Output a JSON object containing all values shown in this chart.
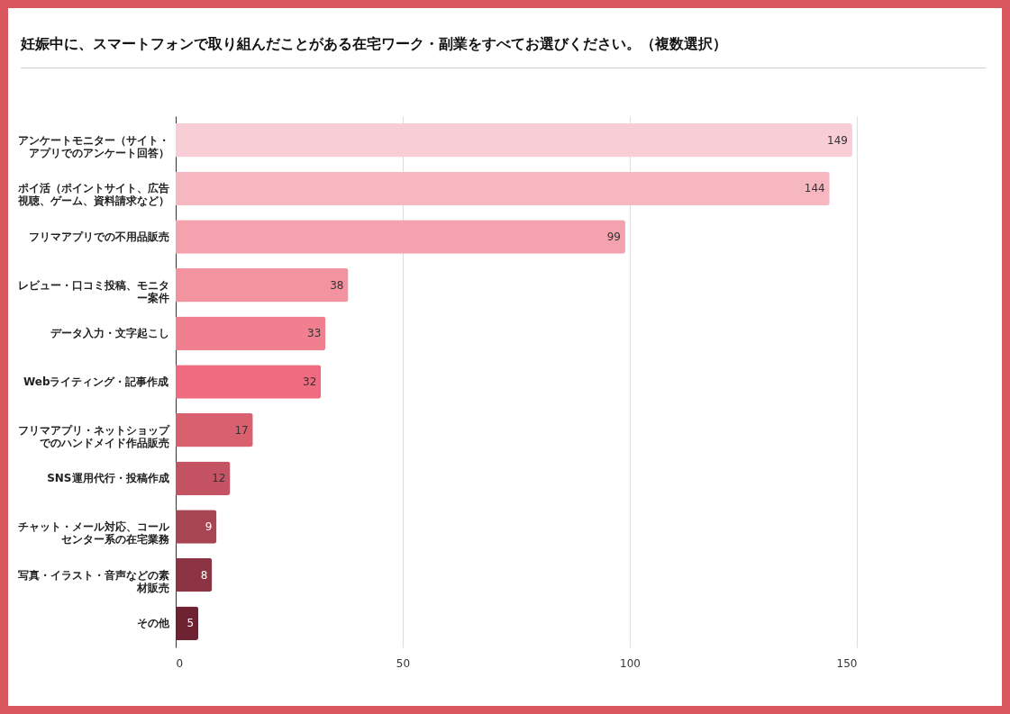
{
  "chart_data": {
    "type": "bar",
    "orientation": "horizontal",
    "title": "妊娠中に、スマートフォンで取り組んだことがある在宅ワーク・副業をすべてお選びください。（複数選択）",
    "categories": [
      "アンケートモニター（サイト・アプリでのアンケート回答）",
      "ポイ活（ポイントサイト、広告視聴、ゲーム、資料請求など）",
      "フリマアプリでの不用品販売",
      "レビュー・口コミ投稿、モニター案件",
      "データ入力・文字起こし",
      "Webライティング・記事作成",
      "フリマアプリ・ネットショップでのハンドメイド作品販売",
      "SNS運用代行・投稿作成",
      "チャット・メール対応、コールセンター系の在宅業務",
      "写真・イラスト・音声などの素材販売",
      "その他"
    ],
    "values": [
      149,
      144,
      99,
      38,
      33,
      32,
      17,
      12,
      9,
      8,
      5
    ],
    "colors": [
      "#f9cdd5",
      "#f7b7c1",
      "#f4a3ae",
      "#f2939f",
      "#f07f8f",
      "#ef6b7f",
      "#d9606f",
      "#c45463",
      "#a84553",
      "#8c3443",
      "#6e2232"
    ],
    "xlim": [
      0,
      150
    ],
    "xticks": [
      0,
      50,
      100,
      150
    ],
    "grid": "x",
    "data_labels": true,
    "legend": false
  }
}
